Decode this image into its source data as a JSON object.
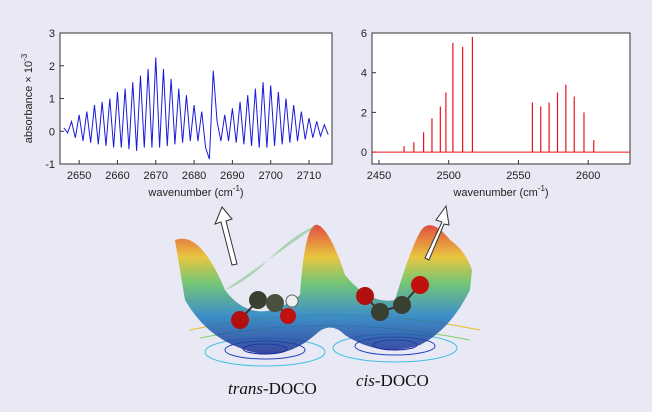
{
  "chart_data": [
    {
      "type": "line",
      "color": "#1a1adc",
      "xlabel": {
        "text": "wavenumber (cm",
        "sup": "-1",
        "after": ")"
      },
      "ylabel": {
        "text": "absorbance × 10",
        "sup": "-3"
      },
      "xlim": [
        2645,
        2716
      ],
      "xticks": [
        2650,
        2660,
        2670,
        2680,
        2690,
        2700,
        2710
      ],
      "ylim": [
        -1,
        3
      ],
      "yticks": [
        -1,
        0,
        1,
        2,
        3
      ],
      "x": [
        2646,
        2647,
        2648,
        2649,
        2650,
        2651,
        2652,
        2653,
        2654,
        2655,
        2656,
        2657,
        2658,
        2659,
        2660,
        2661,
        2662,
        2663,
        2664,
        2665,
        2666,
        2667,
        2668,
        2669,
        2670,
        2671,
        2672,
        2673,
        2674,
        2675,
        2676,
        2677,
        2678,
        2679,
        2680,
        2681,
        2682,
        2683,
        2684,
        2685,
        2686,
        2687,
        2688,
        2689,
        2690,
        2691,
        2692,
        2693,
        2694,
        2695,
        2696,
        2697,
        2698,
        2699,
        2700,
        2701,
        2702,
        2703,
        2704,
        2705,
        2706,
        2707,
        2708,
        2709,
        2710,
        2711,
        2712,
        2713,
        2714,
        2715
      ],
      "values": [
        0.1,
        -0.05,
        0.3,
        -0.2,
        0.5,
        -0.3,
        0.6,
        -0.35,
        0.8,
        -0.4,
        0.9,
        -0.45,
        1.0,
        -0.5,
        1.2,
        -0.5,
        1.3,
        -0.55,
        1.5,
        -0.6,
        1.7,
        -0.5,
        1.9,
        -0.5,
        2.25,
        -0.5,
        1.9,
        -0.45,
        1.6,
        -0.4,
        1.3,
        -0.35,
        1.1,
        -0.3,
        0.8,
        -0.3,
        0.6,
        -0.5,
        -0.85,
        1.85,
        0.3,
        -0.3,
        0.5,
        -0.3,
        0.7,
        -0.35,
        0.9,
        -0.4,
        1.1,
        -0.45,
        1.3,
        -0.5,
        1.5,
        -0.5,
        1.4,
        -0.45,
        1.2,
        -0.4,
        1.0,
        -0.35,
        0.8,
        -0.3,
        0.6,
        -0.25,
        0.4,
        -0.2,
        0.3,
        -0.15,
        0.2,
        -0.1
      ]
    },
    {
      "type": "stem",
      "color": "#e8141c",
      "xlabel": {
        "text": "wavenumber (cm",
        "sup": "-1",
        "after": ")"
      },
      "xlim": [
        2445,
        2630
      ],
      "xticks": [
        2450,
        2500,
        2550,
        2600
      ],
      "ylim": [
        -0.6,
        6
      ],
      "yticks": [
        0,
        2,
        4,
        6
      ],
      "x": [
        2468,
        2475,
        2482,
        2488,
        2494,
        2498,
        2503,
        2510,
        2517,
        2560,
        2566,
        2572,
        2578,
        2584,
        2590,
        2597,
        2604
      ],
      "values": [
        0.3,
        0.5,
        1.0,
        1.7,
        2.3,
        3.0,
        5.5,
        5.3,
        5.8,
        2.5,
        2.3,
        2.5,
        3.0,
        3.4,
        2.8,
        2.0,
        0.6
      ]
    }
  ],
  "annotations": [
    {
      "italic": "trans",
      "text": "-DOCO"
    },
    {
      "italic": "cis",
      "text": "-DOCO"
    }
  ]
}
